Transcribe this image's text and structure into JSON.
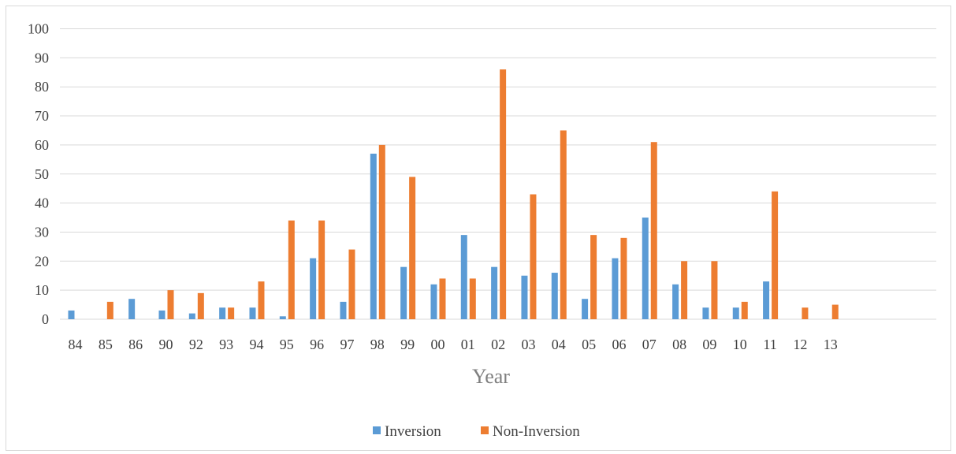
{
  "chart_data": {
    "type": "bar",
    "xlabel": "Year",
    "ylabel": "",
    "ylim": [
      0,
      100
    ],
    "yticks": [
      0,
      10,
      20,
      30,
      40,
      50,
      60,
      70,
      80,
      90,
      100
    ],
    "categories": [
      "84",
      "85",
      "86",
      "90",
      "92",
      "93",
      "94",
      "95",
      "96",
      "97",
      "98",
      "99",
      "00",
      "01",
      "02",
      "03",
      "04",
      "05",
      "06",
      "07",
      "08",
      "09",
      "10",
      "11",
      "12",
      "13"
    ],
    "series": [
      {
        "name": "Inversion",
        "color": "#5b9bd5",
        "values": [
          3,
          0,
          7,
          3,
          2,
          4,
          4,
          1,
          21,
          6,
          57,
          18,
          12,
          29,
          18,
          15,
          16,
          7,
          21,
          35,
          12,
          4,
          4,
          13,
          0,
          0
        ]
      },
      {
        "name": "Non-Inversion",
        "color": "#ed7d31",
        "values": [
          0,
          6,
          0,
          10,
          9,
          4,
          13,
          34,
          34,
          24,
          60,
          49,
          14,
          14,
          86,
          43,
          65,
          29,
          28,
          61,
          20,
          20,
          6,
          44,
          4,
          5
        ]
      }
    ],
    "grid": true,
    "legend_position": "bottom"
  }
}
